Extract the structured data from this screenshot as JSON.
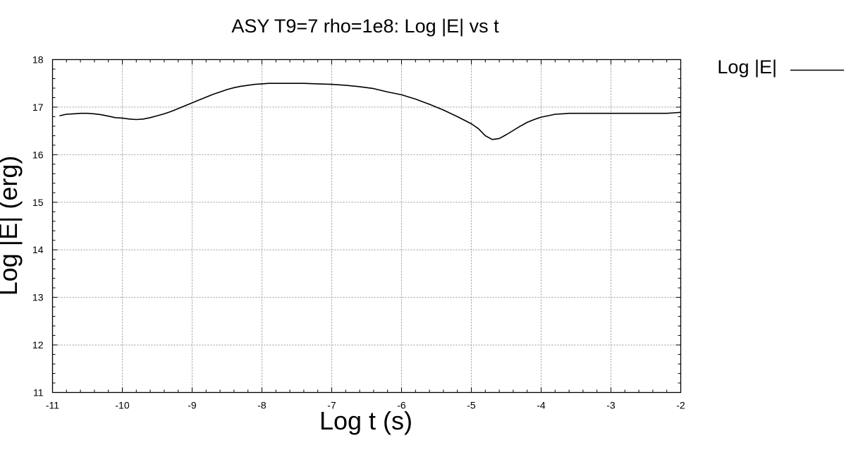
{
  "chart_data": {
    "type": "line",
    "title": "ASY T9=7 rho=1e8: Log |E| vs t",
    "xlabel": "Log t (s)",
    "ylabel": "Log |E| (erg)",
    "xlim": [
      -11,
      -2
    ],
    "ylim": [
      11,
      18
    ],
    "xticks": [
      -11,
      -10,
      -9,
      -8,
      -7,
      -6,
      -5,
      -4,
      -3,
      -2
    ],
    "yticks": [
      11,
      12,
      13,
      14,
      15,
      16,
      17,
      18
    ],
    "grid": true,
    "legend_position": "right-top",
    "series": [
      {
        "name": "Log |E|",
        "color": "#000000",
        "x": [
          -10.9,
          -10.8,
          -10.7,
          -10.6,
          -10.5,
          -10.4,
          -10.3,
          -10.2,
          -10.1,
          -10.0,
          -9.9,
          -9.8,
          -9.7,
          -9.6,
          -9.5,
          -9.4,
          -9.3,
          -9.2,
          -9.1,
          -9.0,
          -8.9,
          -8.8,
          -8.7,
          -8.6,
          -8.5,
          -8.4,
          -8.3,
          -8.2,
          -8.1,
          -8.0,
          -7.9,
          -7.8,
          -7.6,
          -7.4,
          -7.2,
          -7.0,
          -6.8,
          -6.6,
          -6.4,
          -6.2,
          -6.0,
          -5.8,
          -5.6,
          -5.4,
          -5.2,
          -5.0,
          -4.9,
          -4.8,
          -4.7,
          -4.6,
          -4.5,
          -4.4,
          -4.3,
          -4.2,
          -4.1,
          -4.0,
          -3.9,
          -3.8,
          -3.7,
          -3.6,
          -3.5,
          -3.4,
          -3.2,
          -3.0,
          -2.8,
          -2.6,
          -2.4,
          -2.2,
          -2.1,
          -2.0
        ],
        "y": [
          16.82,
          16.85,
          16.86,
          16.87,
          16.87,
          16.86,
          16.84,
          16.81,
          16.78,
          16.77,
          16.75,
          16.74,
          16.75,
          16.78,
          16.82,
          16.86,
          16.91,
          16.97,
          17.03,
          17.09,
          17.15,
          17.21,
          17.27,
          17.32,
          17.37,
          17.41,
          17.44,
          17.46,
          17.48,
          17.49,
          17.5,
          17.5,
          17.5,
          17.5,
          17.49,
          17.48,
          17.46,
          17.43,
          17.39,
          17.32,
          17.26,
          17.17,
          17.06,
          16.94,
          16.8,
          16.65,
          16.55,
          16.4,
          16.32,
          16.34,
          16.42,
          16.51,
          16.6,
          16.68,
          16.74,
          16.79,
          16.82,
          16.85,
          16.86,
          16.87,
          16.87,
          16.87,
          16.87,
          16.87,
          16.87,
          16.87,
          16.87,
          16.87,
          16.88,
          16.89
        ]
      }
    ]
  }
}
